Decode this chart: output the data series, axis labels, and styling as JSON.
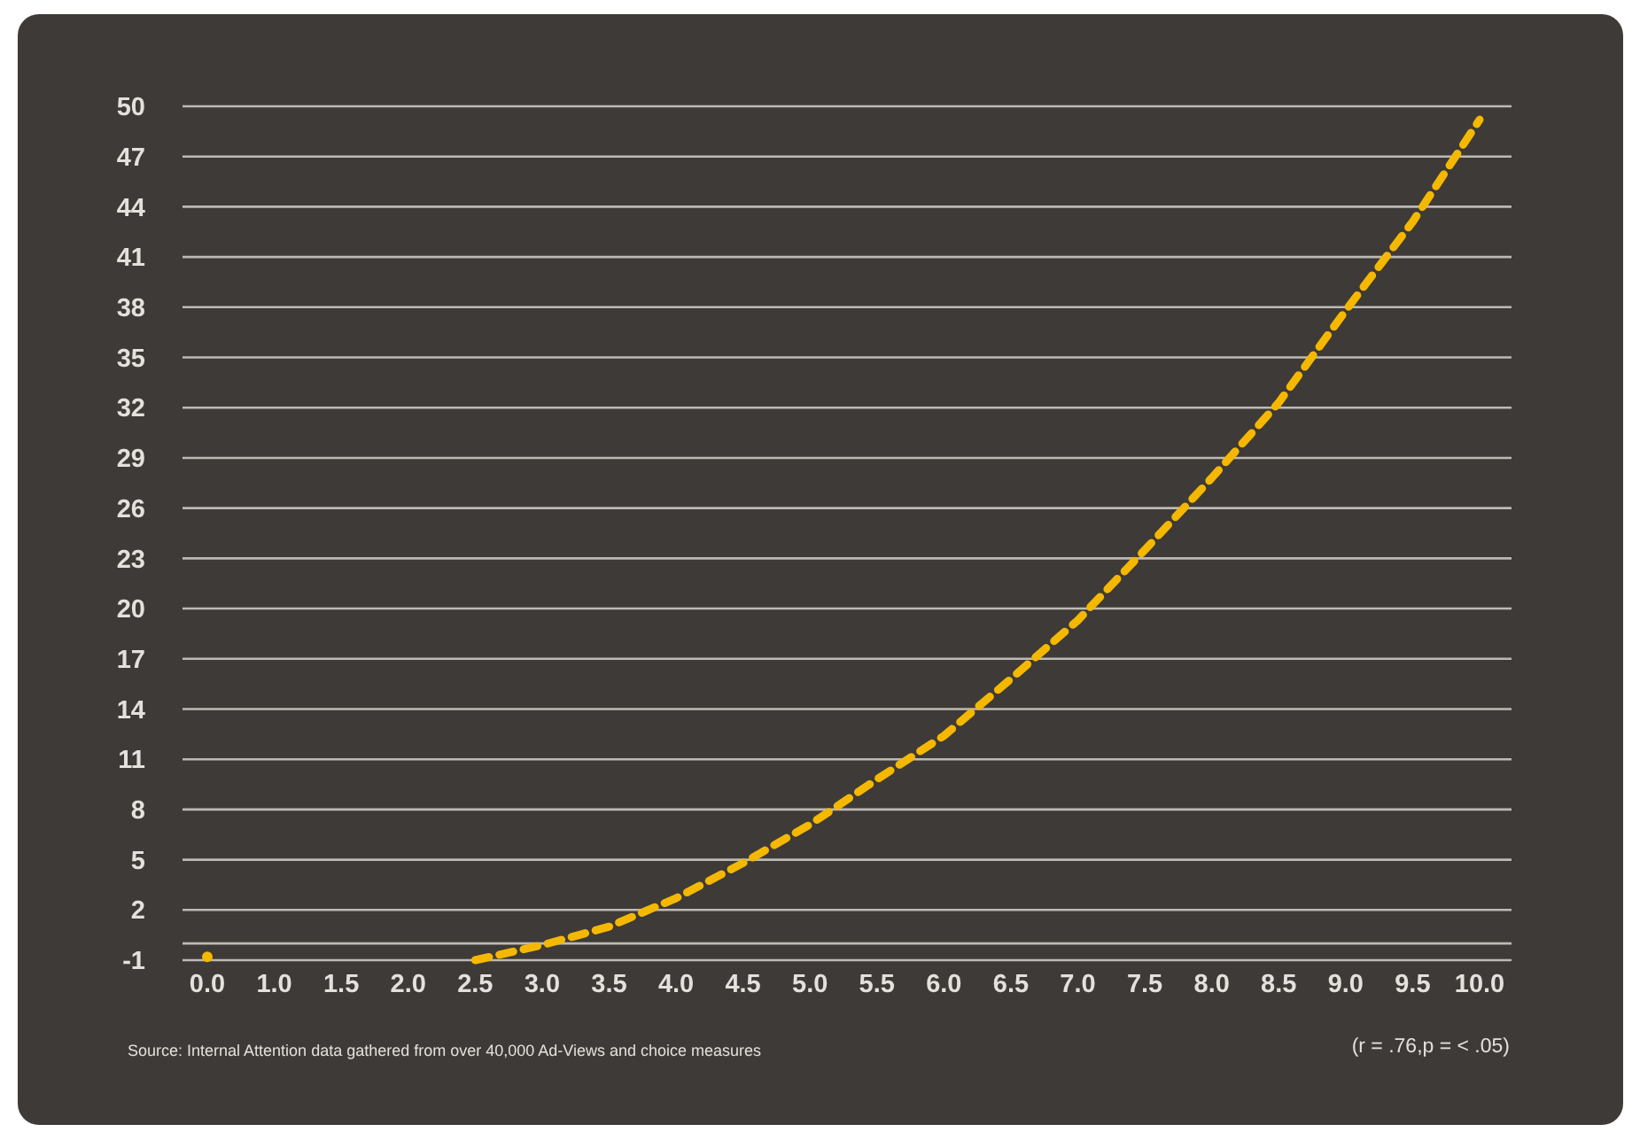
{
  "chart_data": {
    "type": "line",
    "categories": [
      "0.0",
      "1.0",
      "1.5",
      "2.0",
      "2.5",
      "3.0",
      "3.5",
      "4.0",
      "4.5",
      "5.0",
      "5.5",
      "6.0",
      "6.5",
      "7.0",
      "7.5",
      "8.0",
      "8.5",
      "9.0",
      "9.5",
      "10.0"
    ],
    "series": [
      {
        "color": "#f5b800",
        "values": [
          -0.8,
          null,
          null,
          null,
          -1,
          -0.1,
          1.0,
          2.7,
          4.8,
          7.1,
          9.8,
          12.4,
          15.8,
          19.3,
          23.5,
          27.8,
          32.3,
          37.8,
          43.1,
          49.2
        ]
      }
    ],
    "ylim": [
      -1,
      50
    ],
    "yticks": [
      -1,
      {
        "value": 0,
        "label": null
      },
      2,
      5,
      8,
      11,
      14,
      17,
      20,
      23,
      26,
      29,
      32,
      35,
      38,
      41,
      44,
      47,
      50
    ],
    "grid": "y",
    "line_style": "dashed",
    "annotations": [
      "Source: Internal Attention data gathered from over 40,000 Ad-Views and choice measures",
      "(r = .76,p = < .05)"
    ]
  }
}
